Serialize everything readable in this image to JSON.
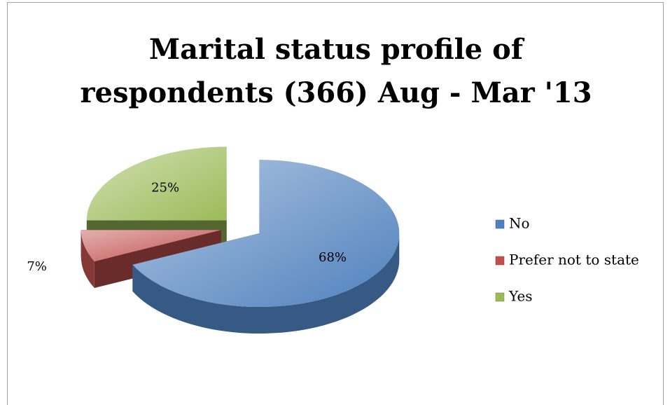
{
  "chart_data": {
    "type": "pie3d",
    "title": "Marital status profile of respondents (366) Aug - Mar '13",
    "categories": [
      "No",
      "Prefer not to state",
      "Yes"
    ],
    "values": [
      68,
      7,
      25
    ],
    "value_labels": [
      "68%",
      "7%",
      "25%"
    ],
    "colors": [
      "#4f81bd",
      "#c0504d",
      "#9bbb59"
    ],
    "legend": "right"
  }
}
